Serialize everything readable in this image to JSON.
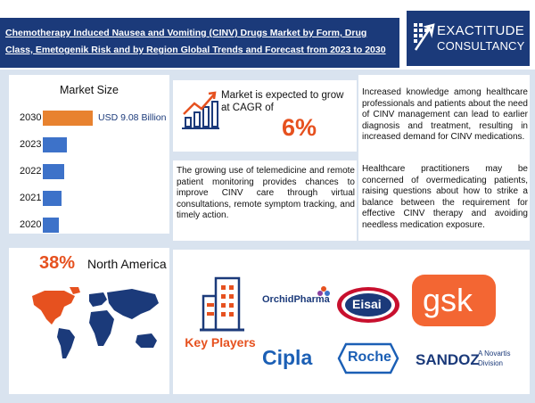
{
  "header": {
    "title": "Chemotherapy Induced Nausea and Vomiting (CINV) Drugs Market by Form, Drug Class, Emetogenik Risk and by Region Global Trends and Forecast from 2023 to 2030",
    "logo_line1": "EXACTITUDE",
    "logo_line2": "CONSULTANCY"
  },
  "market_size": {
    "title": "Market Size",
    "bars": [
      {
        "year": "2030",
        "value": 9.08,
        "color": "#e8822f",
        "label": "USD 9.08 Billion"
      },
      {
        "year": "2023",
        "value": 4.4,
        "color": "#3d72c9"
      },
      {
        "year": "2022",
        "value": 3.9,
        "color": "#3d72c9"
      },
      {
        "year": "2021",
        "value": 3.4,
        "color": "#3d72c9"
      },
      {
        "year": "2020",
        "value": 2.9,
        "color": "#3d72c9"
      }
    ]
  },
  "cagr": {
    "text": "Market is expected to grow at CAGR of",
    "value": "6%"
  },
  "drivers": {
    "telemedicine": "The growing use of telemedicine and remote patient monitoring provides chances to improve CINV care through virtual consultations, remote symptom tracking, and timely action.",
    "knowledge": "Increased knowledge among healthcare professionals and patients about the need of CINV management can lead to earlier diagnosis and treatment, resulting in increased demand for CINV medications.",
    "overmedication": "Healthcare practitioners may be concerned of overmedicating patients, raising questions about how to strike a balance between the requirement for effective CINV therapy and avoiding needless medication exposure."
  },
  "region": {
    "percent": "38%",
    "name": "North America"
  },
  "key_players": {
    "label": "Key Players",
    "companies": {
      "orchid": "OrchidPharma",
      "eisai": "Eisai",
      "gsk": "gsk",
      "cipla": "Cipla",
      "roche": "Roche",
      "sandoz": "SANDOZ",
      "sandoz_tag1": "A Novartis",
      "sandoz_tag2": "Division"
    }
  },
  "colors": {
    "navy": "#1b3a7a",
    "accent": "#e6511f",
    "bar_blue": "#3d72c9",
    "bar_orange": "#e8822f"
  }
}
